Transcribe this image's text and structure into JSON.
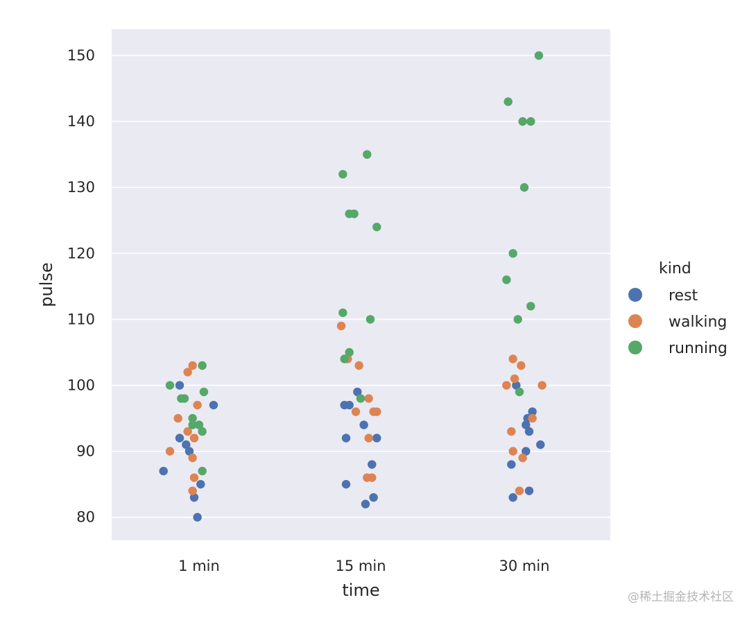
{
  "chart_data": {
    "type": "scatter",
    "xlabel": "time",
    "ylabel": "pulse",
    "categories": [
      "1 min",
      "15 min",
      "30 min"
    ],
    "ylim": [
      76.5,
      154
    ],
    "yticks": [
      80,
      90,
      100,
      110,
      120,
      130,
      140,
      150
    ],
    "grid": true,
    "legend_title": "kind",
    "legend_position": "right",
    "series": [
      {
        "name": "rest",
        "color": "#4c72b0",
        "points": [
          {
            "x": "1 min",
            "y": 100,
            "jitter": -0.12
          },
          {
            "x": "1 min",
            "y": 92,
            "jitter": -0.12
          },
          {
            "x": "1 min",
            "y": 91,
            "jitter": -0.08
          },
          {
            "x": "1 min",
            "y": 90,
            "jitter": -0.06
          },
          {
            "x": "1 min",
            "y": 87,
            "jitter": -0.22
          },
          {
            "x": "1 min",
            "y": 85,
            "jitter": 0.01
          },
          {
            "x": "1 min",
            "y": 83,
            "jitter": -0.03
          },
          {
            "x": "1 min",
            "y": 80,
            "jitter": -0.01
          },
          {
            "x": "1 min",
            "y": 97,
            "jitter": 0.09
          },
          {
            "x": "15 min",
            "y": 99,
            "jitter": -0.02
          },
          {
            "x": "15 min",
            "y": 97,
            "jitter": -0.1
          },
          {
            "x": "15 min",
            "y": 97,
            "jitter": -0.07
          },
          {
            "x": "15 min",
            "y": 94,
            "jitter": 0.02
          },
          {
            "x": "15 min",
            "y": 92,
            "jitter": -0.09
          },
          {
            "x": "15 min",
            "y": 92,
            "jitter": 0.1
          },
          {
            "x": "15 min",
            "y": 88,
            "jitter": 0.07
          },
          {
            "x": "15 min",
            "y": 85,
            "jitter": -0.09
          },
          {
            "x": "15 min",
            "y": 83,
            "jitter": 0.08
          },
          {
            "x": "15 min",
            "y": 82,
            "jitter": 0.03
          },
          {
            "x": "30 min",
            "y": 100,
            "jitter": -0.05
          },
          {
            "x": "30 min",
            "y": 96,
            "jitter": 0.05
          },
          {
            "x": "30 min",
            "y": 95,
            "jitter": 0.02
          },
          {
            "x": "30 min",
            "y": 94,
            "jitter": 0.01
          },
          {
            "x": "30 min",
            "y": 93,
            "jitter": 0.03
          },
          {
            "x": "30 min",
            "y": 91,
            "jitter": 0.1
          },
          {
            "x": "30 min",
            "y": 90,
            "jitter": 0.01
          },
          {
            "x": "30 min",
            "y": 88,
            "jitter": -0.08
          },
          {
            "x": "30 min",
            "y": 84,
            "jitter": 0.03
          },
          {
            "x": "30 min",
            "y": 83,
            "jitter": -0.07
          }
        ]
      },
      {
        "name": "walking",
        "color": "#dd8452",
        "points": [
          {
            "x": "1 min",
            "y": 103,
            "jitter": -0.04
          },
          {
            "x": "1 min",
            "y": 102,
            "jitter": -0.07
          },
          {
            "x": "1 min",
            "y": 97,
            "jitter": -0.01
          },
          {
            "x": "1 min",
            "y": 95,
            "jitter": -0.13
          },
          {
            "x": "1 min",
            "y": 93,
            "jitter": -0.07
          },
          {
            "x": "1 min",
            "y": 92,
            "jitter": -0.03
          },
          {
            "x": "1 min",
            "y": 90,
            "jitter": -0.18
          },
          {
            "x": "1 min",
            "y": 89,
            "jitter": -0.04
          },
          {
            "x": "1 min",
            "y": 86,
            "jitter": -0.03
          },
          {
            "x": "1 min",
            "y": 84,
            "jitter": -0.04
          },
          {
            "x": "15 min",
            "y": 109,
            "jitter": -0.12
          },
          {
            "x": "15 min",
            "y": 104,
            "jitter": -0.08
          },
          {
            "x": "15 min",
            "y": 103,
            "jitter": -0.01
          },
          {
            "x": "15 min",
            "y": 98,
            "jitter": 0.05
          },
          {
            "x": "15 min",
            "y": 96,
            "jitter": -0.03
          },
          {
            "x": "15 min",
            "y": 96,
            "jitter": 0.08
          },
          {
            "x": "15 min",
            "y": 96,
            "jitter": 0.1
          },
          {
            "x": "15 min",
            "y": 92,
            "jitter": 0.05
          },
          {
            "x": "15 min",
            "y": 86,
            "jitter": 0.04
          },
          {
            "x": "15 min",
            "y": 86,
            "jitter": 0.07
          },
          {
            "x": "30 min",
            "y": 104,
            "jitter": -0.07
          },
          {
            "x": "30 min",
            "y": 103,
            "jitter": -0.02
          },
          {
            "x": "30 min",
            "y": 101,
            "jitter": -0.06
          },
          {
            "x": "30 min",
            "y": 100,
            "jitter": -0.11
          },
          {
            "x": "30 min",
            "y": 100,
            "jitter": 0.11
          },
          {
            "x": "30 min",
            "y": 95,
            "jitter": 0.05
          },
          {
            "x": "30 min",
            "y": 93,
            "jitter": -0.08
          },
          {
            "x": "30 min",
            "y": 90,
            "jitter": -0.07
          },
          {
            "x": "30 min",
            "y": 89,
            "jitter": -0.01
          },
          {
            "x": "30 min",
            "y": 84,
            "jitter": -0.03
          }
        ]
      },
      {
        "name": "running",
        "color": "#55a868",
        "points": [
          {
            "x": "1 min",
            "y": 103,
            "jitter": 0.02
          },
          {
            "x": "1 min",
            "y": 100,
            "jitter": -0.18
          },
          {
            "x": "1 min",
            "y": 99,
            "jitter": 0.03
          },
          {
            "x": "1 min",
            "y": 98,
            "jitter": -0.11
          },
          {
            "x": "1 min",
            "y": 98,
            "jitter": -0.09
          },
          {
            "x": "1 min",
            "y": 95,
            "jitter": -0.04
          },
          {
            "x": "1 min",
            "y": 94,
            "jitter": -0.04
          },
          {
            "x": "1 min",
            "y": 94,
            "jitter": 0.0
          },
          {
            "x": "1 min",
            "y": 93,
            "jitter": 0.02
          },
          {
            "x": "1 min",
            "y": 87,
            "jitter": 0.02
          },
          {
            "x": "15 min",
            "y": 135,
            "jitter": 0.04
          },
          {
            "x": "15 min",
            "y": 132,
            "jitter": -0.11
          },
          {
            "x": "15 min",
            "y": 126,
            "jitter": -0.07
          },
          {
            "x": "15 min",
            "y": 126,
            "jitter": -0.04
          },
          {
            "x": "15 min",
            "y": 124,
            "jitter": 0.1
          },
          {
            "x": "15 min",
            "y": 111,
            "jitter": -0.11
          },
          {
            "x": "15 min",
            "y": 110,
            "jitter": 0.06
          },
          {
            "x": "15 min",
            "y": 105,
            "jitter": -0.07
          },
          {
            "x": "15 min",
            "y": 104,
            "jitter": -0.1
          },
          {
            "x": "15 min",
            "y": 98,
            "jitter": 0.0
          },
          {
            "x": "30 min",
            "y": 150,
            "jitter": 0.09
          },
          {
            "x": "30 min",
            "y": 143,
            "jitter": -0.1
          },
          {
            "x": "30 min",
            "y": 140,
            "jitter": -0.01
          },
          {
            "x": "30 min",
            "y": 140,
            "jitter": 0.04
          },
          {
            "x": "30 min",
            "y": 130,
            "jitter": 0.0
          },
          {
            "x": "30 min",
            "y": 120,
            "jitter": -0.07
          },
          {
            "x": "30 min",
            "y": 116,
            "jitter": -0.11
          },
          {
            "x": "30 min",
            "y": 112,
            "jitter": 0.04
          },
          {
            "x": "30 min",
            "y": 110,
            "jitter": -0.04
          },
          {
            "x": "30 min",
            "y": 99,
            "jitter": -0.03
          }
        ]
      }
    ]
  },
  "watermark": "@稀土掘金技术社区",
  "colors": {
    "plot_background": "#eaeaf2",
    "grid": "#ffffff",
    "text": "#262626"
  }
}
